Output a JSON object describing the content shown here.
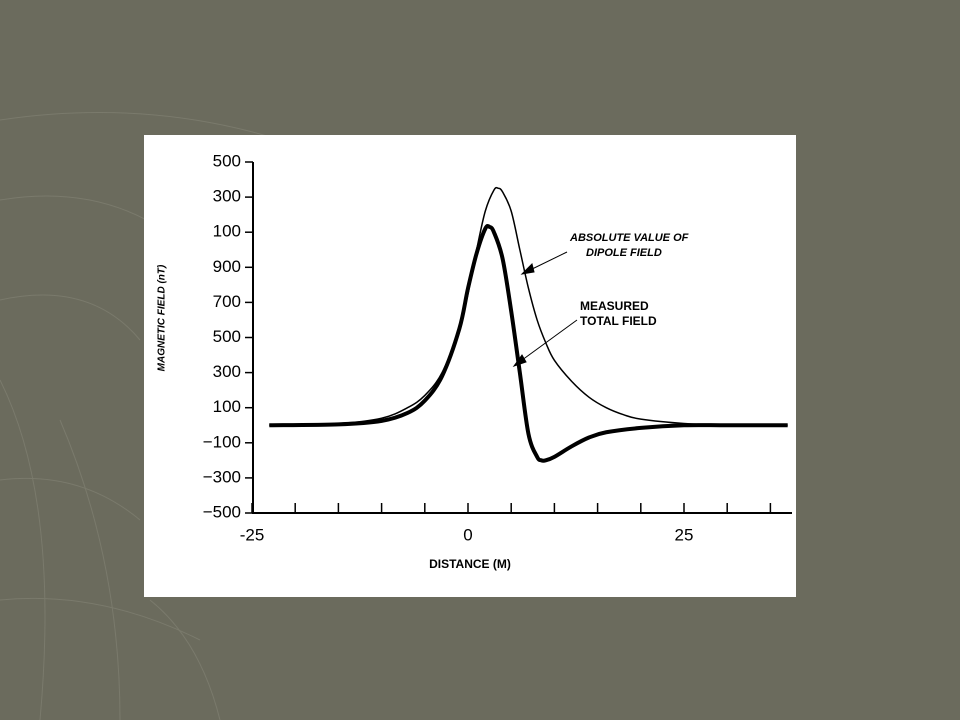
{
  "chart_data": {
    "type": "line",
    "x_label": "DISTANCE (M)",
    "y_label": "MAGNETIC FIELD (nT)",
    "xlim": [
      -25,
      37.5
    ],
    "xticks": [
      -25,
      0,
      25
    ],
    "xminorticks": [
      -20,
      -15,
      -10,
      -5,
      5,
      10,
      15,
      20,
      30,
      35
    ],
    "ylim": [
      -500,
      1500
    ],
    "yticks": [
      {
        "value": 1500,
        "label": "500"
      },
      {
        "value": 1300,
        "label": "300"
      },
      {
        "value": 1100,
        "label": "100"
      },
      900,
      700,
      500,
      300,
      100,
      {
        "value": -100,
        "label": "−100"
      },
      {
        "value": -300,
        "label": "−300"
      },
      {
        "value": -500,
        "label": "−500"
      }
    ],
    "series": [
      {
        "color": "#000000",
        "x": [
          -23,
          -15,
          -10,
          -7,
          -5,
          -3,
          -1,
          0,
          1,
          2,
          3,
          3.5,
          4,
          5,
          6,
          7,
          8,
          9,
          10,
          12,
          14,
          16,
          18,
          20,
          25,
          30,
          37
        ],
        "values": [
          0,
          10,
          40,
          100,
          170,
          300,
          550,
          750,
          1000,
          1220,
          1340,
          1350,
          1330,
          1220,
          1000,
          780,
          600,
          470,
          370,
          250,
          160,
          100,
          60,
          35,
          10,
          0,
          0
        ]
      },
      {
        "color": "#000000",
        "x": [
          -23,
          -15,
          -10,
          -7,
          -5,
          -3,
          -1,
          0,
          1,
          2,
          2.5,
          3,
          4,
          5,
          6,
          7,
          8,
          8.5,
          9,
          10,
          12,
          14,
          16,
          20,
          25,
          30,
          37
        ],
        "values": [
          0,
          5,
          25,
          70,
          140,
          280,
          550,
          780,
          980,
          1120,
          1130,
          1100,
          950,
          650,
          300,
          -50,
          -180,
          -200,
          -200,
          -180,
          -120,
          -70,
          -40,
          -15,
          0,
          0,
          0
        ]
      }
    ],
    "annotations": [
      {
        "lines": [
          "ABSOLUTE VALUE OF",
          "DIPOLE FIELD"
        ]
      },
      {
        "lines": [
          "MEASURED",
          "TOTAL FIELD"
        ]
      }
    ]
  }
}
